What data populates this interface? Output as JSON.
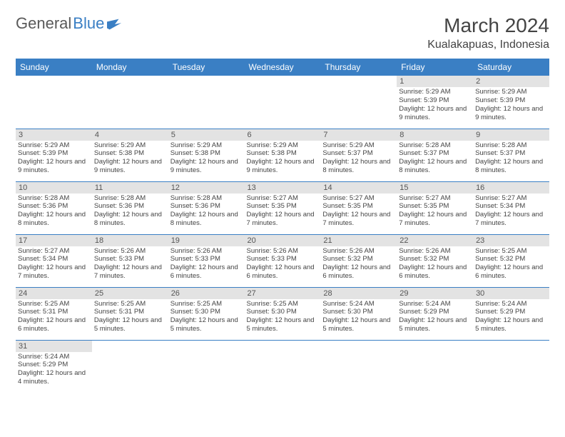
{
  "logo": {
    "word1": "General",
    "word2": "Blue"
  },
  "title": "March 2024",
  "location": "Kualakapuas, Indonesia",
  "colors": {
    "header_bg": "#3a7fc4",
    "daynum_bg": "#e3e3e3",
    "text": "#444444"
  },
  "weekdays": [
    "Sunday",
    "Monday",
    "Tuesday",
    "Wednesday",
    "Thursday",
    "Friday",
    "Saturday"
  ],
  "first_weekday_index": 5,
  "days": [
    {
      "n": 1,
      "sr": "5:29 AM",
      "ss": "5:39 PM",
      "dl": "12 hours and 9 minutes."
    },
    {
      "n": 2,
      "sr": "5:29 AM",
      "ss": "5:39 PM",
      "dl": "12 hours and 9 minutes."
    },
    {
      "n": 3,
      "sr": "5:29 AM",
      "ss": "5:39 PM",
      "dl": "12 hours and 9 minutes."
    },
    {
      "n": 4,
      "sr": "5:29 AM",
      "ss": "5:38 PM",
      "dl": "12 hours and 9 minutes."
    },
    {
      "n": 5,
      "sr": "5:29 AM",
      "ss": "5:38 PM",
      "dl": "12 hours and 9 minutes."
    },
    {
      "n": 6,
      "sr": "5:29 AM",
      "ss": "5:38 PM",
      "dl": "12 hours and 9 minutes."
    },
    {
      "n": 7,
      "sr": "5:29 AM",
      "ss": "5:37 PM",
      "dl": "12 hours and 8 minutes."
    },
    {
      "n": 8,
      "sr": "5:28 AM",
      "ss": "5:37 PM",
      "dl": "12 hours and 8 minutes."
    },
    {
      "n": 9,
      "sr": "5:28 AM",
      "ss": "5:37 PM",
      "dl": "12 hours and 8 minutes."
    },
    {
      "n": 10,
      "sr": "5:28 AM",
      "ss": "5:36 PM",
      "dl": "12 hours and 8 minutes."
    },
    {
      "n": 11,
      "sr": "5:28 AM",
      "ss": "5:36 PM",
      "dl": "12 hours and 8 minutes."
    },
    {
      "n": 12,
      "sr": "5:28 AM",
      "ss": "5:36 PM",
      "dl": "12 hours and 8 minutes."
    },
    {
      "n": 13,
      "sr": "5:27 AM",
      "ss": "5:35 PM",
      "dl": "12 hours and 7 minutes."
    },
    {
      "n": 14,
      "sr": "5:27 AM",
      "ss": "5:35 PM",
      "dl": "12 hours and 7 minutes."
    },
    {
      "n": 15,
      "sr": "5:27 AM",
      "ss": "5:35 PM",
      "dl": "12 hours and 7 minutes."
    },
    {
      "n": 16,
      "sr": "5:27 AM",
      "ss": "5:34 PM",
      "dl": "12 hours and 7 minutes."
    },
    {
      "n": 17,
      "sr": "5:27 AM",
      "ss": "5:34 PM",
      "dl": "12 hours and 7 minutes."
    },
    {
      "n": 18,
      "sr": "5:26 AM",
      "ss": "5:33 PM",
      "dl": "12 hours and 7 minutes."
    },
    {
      "n": 19,
      "sr": "5:26 AM",
      "ss": "5:33 PM",
      "dl": "12 hours and 6 minutes."
    },
    {
      "n": 20,
      "sr": "5:26 AM",
      "ss": "5:33 PM",
      "dl": "12 hours and 6 minutes."
    },
    {
      "n": 21,
      "sr": "5:26 AM",
      "ss": "5:32 PM",
      "dl": "12 hours and 6 minutes."
    },
    {
      "n": 22,
      "sr": "5:26 AM",
      "ss": "5:32 PM",
      "dl": "12 hours and 6 minutes."
    },
    {
      "n": 23,
      "sr": "5:25 AM",
      "ss": "5:32 PM",
      "dl": "12 hours and 6 minutes."
    },
    {
      "n": 24,
      "sr": "5:25 AM",
      "ss": "5:31 PM",
      "dl": "12 hours and 6 minutes."
    },
    {
      "n": 25,
      "sr": "5:25 AM",
      "ss": "5:31 PM",
      "dl": "12 hours and 5 minutes."
    },
    {
      "n": 26,
      "sr": "5:25 AM",
      "ss": "5:30 PM",
      "dl": "12 hours and 5 minutes."
    },
    {
      "n": 27,
      "sr": "5:25 AM",
      "ss": "5:30 PM",
      "dl": "12 hours and 5 minutes."
    },
    {
      "n": 28,
      "sr": "5:24 AM",
      "ss": "5:30 PM",
      "dl": "12 hours and 5 minutes."
    },
    {
      "n": 29,
      "sr": "5:24 AM",
      "ss": "5:29 PM",
      "dl": "12 hours and 5 minutes."
    },
    {
      "n": 30,
      "sr": "5:24 AM",
      "ss": "5:29 PM",
      "dl": "12 hours and 5 minutes."
    },
    {
      "n": 31,
      "sr": "5:24 AM",
      "ss": "5:29 PM",
      "dl": "12 hours and 4 minutes."
    }
  ],
  "labels": {
    "sunrise": "Sunrise:",
    "sunset": "Sunset:",
    "daylight": "Daylight:"
  }
}
